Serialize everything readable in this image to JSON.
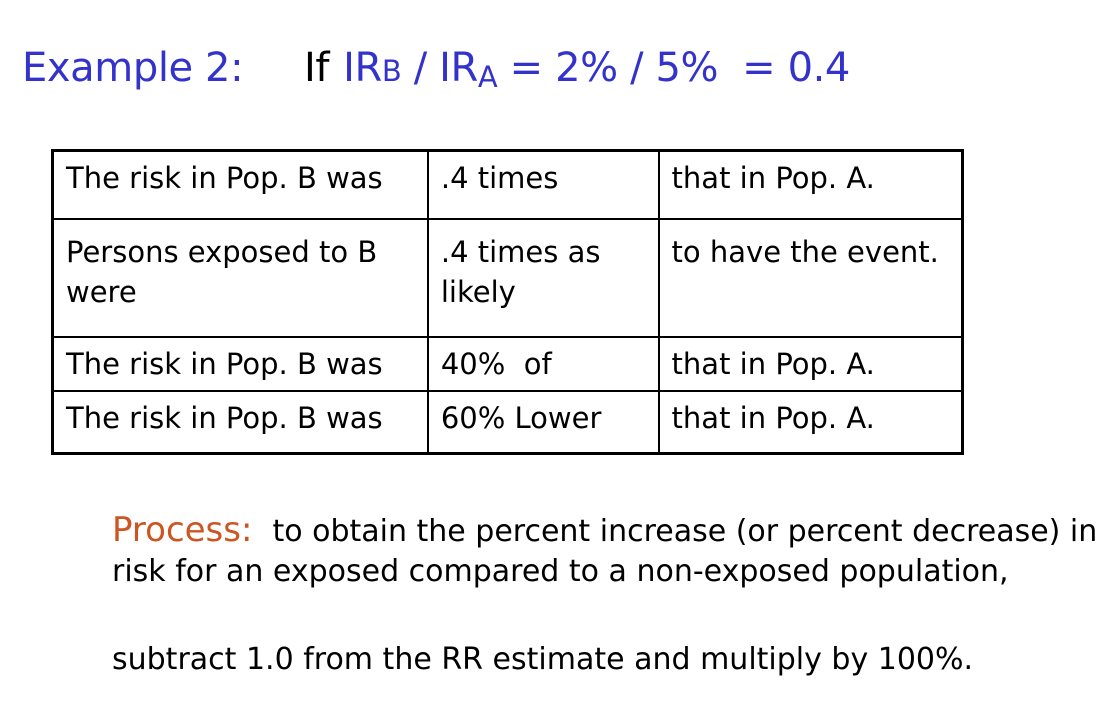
{
  "heading": {
    "label": "Example 2:",
    "if_word": "If",
    "ir1": "IR",
    "ir1_sub": "B",
    "slash": " / ",
    "ir2": "IR",
    "ir2_sub": "A",
    "equation_rest": " = 2% / 5%",
    "result": "= 0.4"
  },
  "table": {
    "rows": [
      {
        "c1": "The risk in Pop. B was",
        "c2": ".4 times",
        "c3": "that in Pop. A."
      },
      {
        "c1": "Persons exposed to B were",
        "c2": ".4 times as likely",
        "c3": "to have the event."
      },
      {
        "c1": "The risk in Pop. B was",
        "c2": "40%  of",
        "c3": "that in Pop. A."
      },
      {
        "c1": "The risk in Pop. B was",
        "c2": "60% Lower",
        "c3": "that in Pop. A."
      }
    ]
  },
  "process": {
    "label": "Process:",
    "text": "to obtain the percent increase (or percent decrease) in risk for an exposed compared to a non-exposed population,",
    "step": "subtract 1.0 from the RR estimate and multiply by 100%."
  },
  "colors": {
    "title_blue": "#3333cc",
    "process_orange": "#cc5522"
  }
}
